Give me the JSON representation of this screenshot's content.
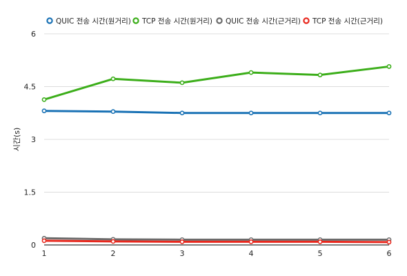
{
  "chart_data": {
    "type": "line",
    "x": [
      1,
      2,
      3,
      4,
      5,
      6
    ],
    "ylabel": "시간(s)",
    "xlabel": "",
    "ylim": [
      0,
      6
    ],
    "yticks": [
      "0",
      "1.5",
      "3",
      "4.5",
      "6"
    ],
    "xticks": [
      "1",
      "2",
      "3",
      "4",
      "5",
      "6"
    ],
    "grid": "horizontal",
    "legend_position": "top",
    "series": [
      {
        "name": "QUIC 전송 시간(원거리)",
        "color": "#1a72b5",
        "values": [
          3.81,
          3.79,
          3.75,
          3.75,
          3.75,
          3.75
        ]
      },
      {
        "name": "TCP 전송 시간(원거리)",
        "color": "#3cae1a",
        "values": [
          4.13,
          4.72,
          4.61,
          4.9,
          4.83,
          5.07
        ]
      },
      {
        "name": "QUIC 전송 시간(근거리)",
        "color": "#6b6b6b",
        "values": [
          0.19,
          0.16,
          0.15,
          0.15,
          0.15,
          0.15
        ]
      },
      {
        "name": "TCP 전송 시간(근거리)",
        "color": "#e8281e",
        "values": [
          0.12,
          0.1,
          0.09,
          0.09,
          0.09,
          0.08
        ]
      }
    ]
  }
}
